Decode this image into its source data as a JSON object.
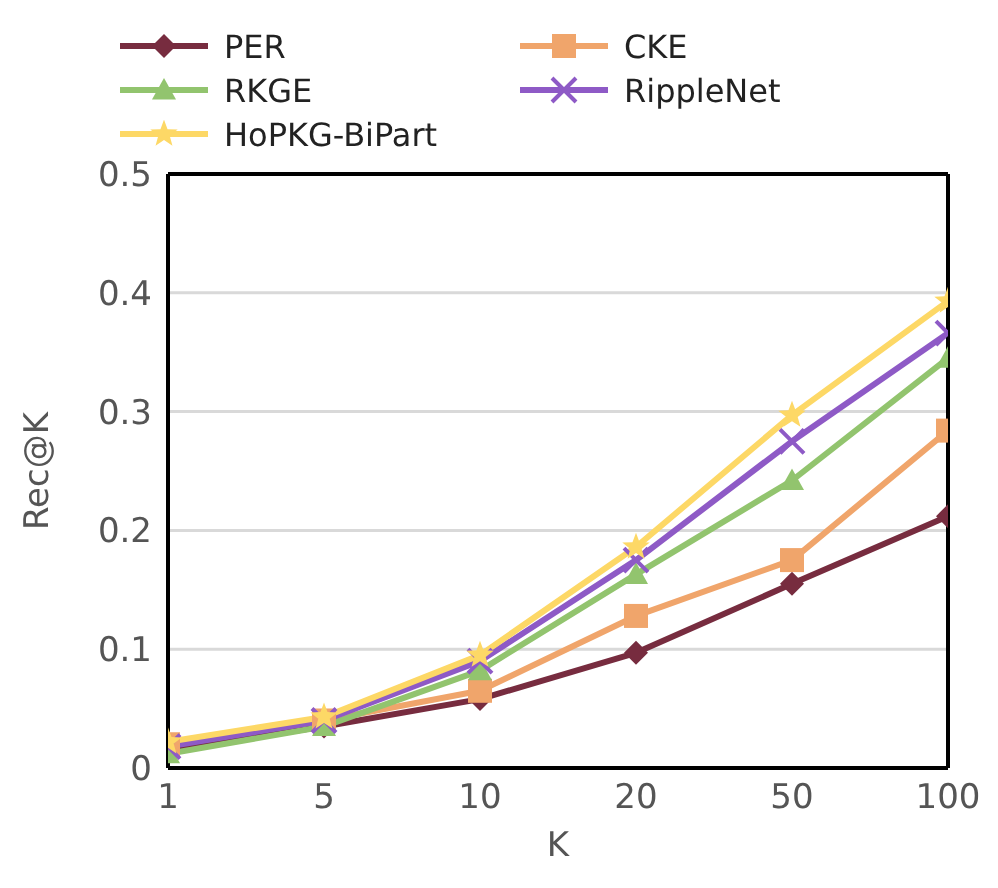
{
  "chart_data": {
    "type": "line",
    "xlabel": "K",
    "ylabel": "Rec@K",
    "categories": [
      "1",
      "5",
      "10",
      "20",
      "50",
      "100"
    ],
    "series": [
      {
        "name": "PER",
        "color": "#772c3f",
        "marker": "diamond",
        "values": [
          0.015,
          0.035,
          0.058,
          0.097,
          0.155,
          0.212
        ]
      },
      {
        "name": "CKE",
        "color": "#f0a56b",
        "marker": "square",
        "values": [
          0.02,
          0.04,
          0.065,
          0.128,
          0.175,
          0.284
        ]
      },
      {
        "name": "RKGE",
        "color": "#92c46e",
        "marker": "triangle",
        "values": [
          0.012,
          0.035,
          0.082,
          0.163,
          0.242,
          0.345
        ]
      },
      {
        "name": "RippleNet",
        "color": "#8e5ac6",
        "marker": "cross",
        "values": [
          0.018,
          0.04,
          0.09,
          0.175,
          0.275,
          0.366
        ]
      },
      {
        "name": "HoPKG-BiPart",
        "color": "#fdd866",
        "marker": "star",
        "values": [
          0.022,
          0.043,
          0.095,
          0.186,
          0.297,
          0.393
        ]
      }
    ],
    "ylim": [
      0,
      0.5
    ],
    "yticks": [
      0,
      0.1,
      0.2,
      0.3,
      0.4,
      0.5
    ],
    "grid": "y",
    "legend": "top",
    "line_style": "solid"
  }
}
